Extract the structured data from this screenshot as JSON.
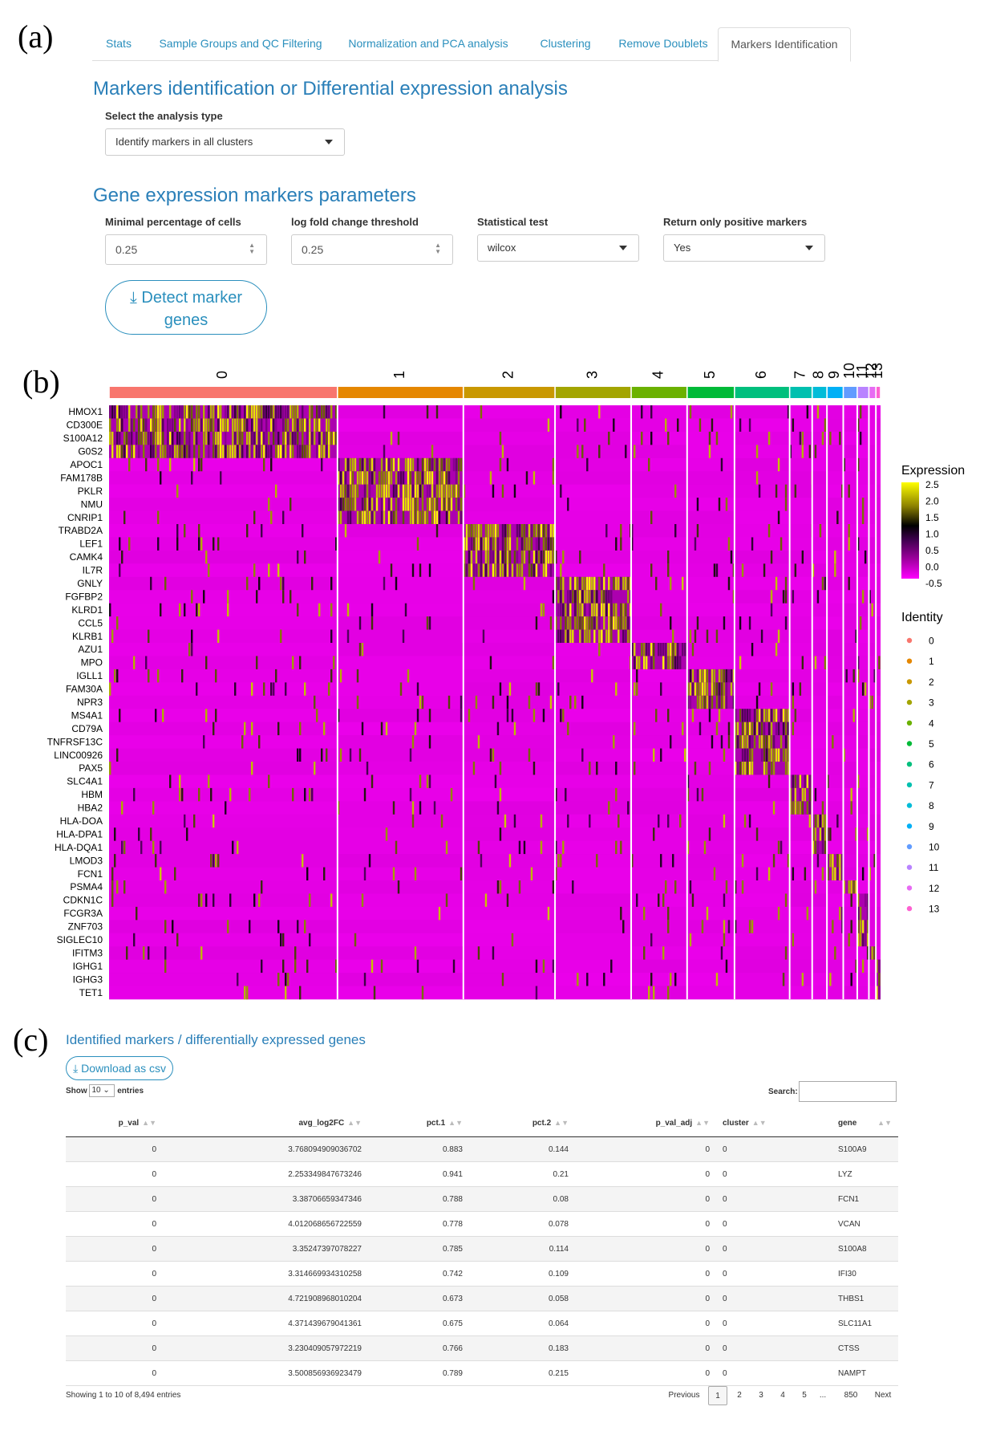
{
  "panel_labels": [
    "(a)",
    "(b)",
    "(c)"
  ],
  "tabs": [
    {
      "label": "Stats"
    },
    {
      "label": "Sample Groups and QC Filtering"
    },
    {
      "label": "Normalization and PCA analysis"
    },
    {
      "label": "Clustering"
    },
    {
      "label": "Remove Doublets"
    },
    {
      "label": "Markers Identification",
      "active": true
    }
  ],
  "section1_title": "Markers identification or Differential expression analysis",
  "analysis_type": {
    "label": "Select the analysis type",
    "value": "Identify markers in all clusters"
  },
  "section2_title": "Gene expression markers parameters",
  "params": {
    "min_pct": {
      "label": "Minimal percentage of cells",
      "value": "0.25"
    },
    "logfc": {
      "label": "log fold change threshold",
      "value": "0.25"
    },
    "test": {
      "label": "Statistical test",
      "value": "wilcox"
    },
    "only_pos": {
      "label": "Return only positive markers",
      "value": "Yes"
    }
  },
  "detect_button": {
    "line1": "Detect marker",
    "line2": "genes"
  },
  "chart_data": {
    "type": "heatmap",
    "clusters": [
      "0",
      "1",
      "2",
      "3",
      "4",
      "5",
      "6",
      "7",
      "8",
      "9",
      "10",
      "11",
      "12",
      "13"
    ],
    "cluster_colors": [
      "#f8766d",
      "#e58700",
      "#c99800",
      "#a3a500",
      "#6bb100",
      "#00ba38",
      "#00bf7d",
      "#00c0af",
      "#00bcd8",
      "#00b0f6",
      "#619cff",
      "#b983ff",
      "#e76bf3",
      "#fd61d1"
    ],
    "cluster_cell_fraction": [
      0.294,
      0.162,
      0.118,
      0.098,
      0.072,
      0.061,
      0.071,
      0.029,
      0.019,
      0.021,
      0.018,
      0.015,
      0.009,
      0.006
    ],
    "genes": [
      "HMOX1",
      "CD300E",
      "S100A12",
      "G0S2",
      "APOC1",
      "FAM178B",
      "PKLR",
      "NMU",
      "CNRIP1",
      "TRABD2A",
      "LEF1",
      "CAMK4",
      "IL7R",
      "GNLY",
      "FGFBP2",
      "KLRD1",
      "CCL5",
      "KLRB1",
      "AZU1",
      "MPO",
      "IGLL1",
      "FAM30A",
      "NPR3",
      "MS4A1",
      "CD79A",
      "TNFRSF13C",
      "LINC00926",
      "PAX5",
      "SLC4A1",
      "HBM",
      "HBA2",
      "HLA-DOA",
      "HLA-DPA1",
      "HLA-DQA1",
      "LMOD3",
      "FCN1",
      "PSMA4",
      "CDKN1C",
      "FCGR3A",
      "ZNF703",
      "SIGLEC10",
      "IFITM3",
      "IGHG1",
      "IGHG3",
      "TET1"
    ],
    "gene_cluster": [
      0,
      0,
      0,
      0,
      1,
      1,
      1,
      1,
      1,
      2,
      2,
      2,
      2,
      3,
      3,
      3,
      3,
      3,
      4,
      4,
      5,
      5,
      5,
      6,
      6,
      6,
      6,
      6,
      7,
      7,
      7,
      8,
      8,
      8,
      9,
      9,
      10,
      11,
      11,
      11,
      11,
      12,
      13,
      13,
      13
    ],
    "legend_expression_title": "Expression",
    "legend_expression_ticks": [
      "2.5",
      "2.0",
      "1.5",
      "1.0",
      "0.5",
      "0.0",
      "-0.5"
    ],
    "colorscale": [
      "#ff00ff",
      "#000000",
      "#ffff00"
    ],
    "legend_identity_title": "Identity"
  },
  "table_section": {
    "title": "Identified markers / differentially expressed genes",
    "download_label": "Download as csv",
    "show_label": "Show",
    "entries_label": "entries",
    "page_size": "10",
    "search_label": "Search:",
    "columns": [
      "p_val",
      "avg_log2FC",
      "pct.1",
      "pct.2",
      "p_val_adj",
      "cluster",
      "gene"
    ],
    "rows": [
      [
        "0",
        "3.768094909036702",
        "0.883",
        "0.144",
        "0",
        "0",
        "S100A9"
      ],
      [
        "0",
        "2.253349847673246",
        "0.941",
        "0.21",
        "0",
        "0",
        "LYZ"
      ],
      [
        "0",
        "3.38706659347346",
        "0.788",
        "0.08",
        "0",
        "0",
        "FCN1"
      ],
      [
        "0",
        "4.012068656722559",
        "0.778",
        "0.078",
        "0",
        "0",
        "VCAN"
      ],
      [
        "0",
        "3.35247397078227",
        "0.785",
        "0.114",
        "0",
        "0",
        "S100A8"
      ],
      [
        "0",
        "3.314669934310258",
        "0.742",
        "0.109",
        "0",
        "0",
        "IFI30"
      ],
      [
        "0",
        "4.721908968010204",
        "0.673",
        "0.058",
        "0",
        "0",
        "THBS1"
      ],
      [
        "0",
        "4.371439679041361",
        "0.675",
        "0.064",
        "0",
        "0",
        "SLC11A1"
      ],
      [
        "0",
        "3.230409057972219",
        "0.766",
        "0.183",
        "0",
        "0",
        "CTSS"
      ],
      [
        "0",
        "3.500856936923479",
        "0.789",
        "0.215",
        "0",
        "0",
        "NAMPT"
      ]
    ],
    "info": "Showing 1 to 10 of 8,494 entries",
    "pagination": [
      "Previous",
      "1",
      "2",
      "3",
      "4",
      "5",
      "...",
      "850",
      "Next"
    ]
  }
}
